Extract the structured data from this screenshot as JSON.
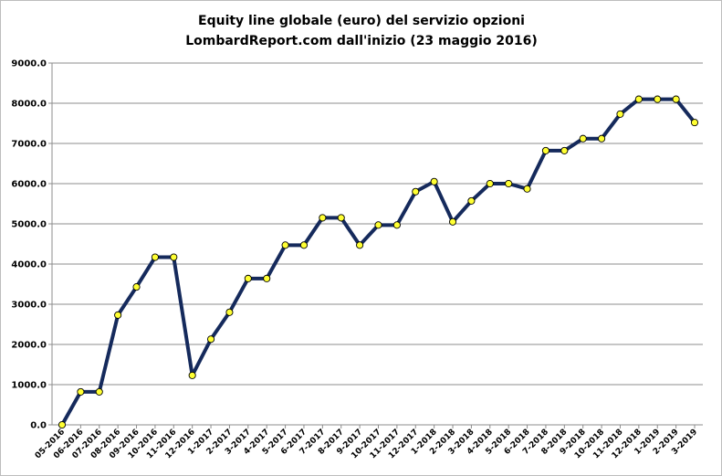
{
  "chart_data": {
    "type": "line",
    "title": "Equity line globale (euro) del servizio opzioni",
    "subtitle": "LombardReport.com dall'inizio (23 maggio 2016)",
    "xlabel": "",
    "ylabel": "",
    "ylim": [
      0,
      9000
    ],
    "yticks": [
      "0.0",
      "1000.0",
      "2000.0",
      "3000.0",
      "4000.0",
      "5000.0",
      "6000.0",
      "7000.0",
      "8000.0",
      "9000.0"
    ],
    "grid": true,
    "legend": "none",
    "line_color": "#152a5c",
    "marker_color": "#ffff33",
    "categories": [
      "05-2016",
      "06-2016",
      "07-2016",
      "08-2016",
      "09-2016",
      "10-2016",
      "11-2016",
      "12-2016",
      "1-2017",
      "2-2017",
      "3-2017",
      "4-2017",
      "5-2017",
      "6-2017",
      "7-2017",
      "8-2017",
      "9-2017",
      "10-2017",
      "11-2017",
      "12-2017",
      "1-2018",
      "2-2018",
      "3-2018",
      "4-2018",
      "5-2018",
      "6-2018",
      "7-2018",
      "8-2018",
      "9-2018",
      "10-2018",
      "11-2018",
      "12-2018",
      "1-2019",
      "2-2019",
      "3-2019"
    ],
    "values": [
      0,
      820,
      820,
      2730,
      3430,
      4170,
      4170,
      1230,
      2130,
      2800,
      3640,
      3640,
      4470,
      4470,
      5150,
      5150,
      4470,
      4970,
      4970,
      5800,
      6050,
      5050,
      5570,
      6000,
      6000,
      5870,
      6820,
      6820,
      7120,
      7120,
      7730,
      8100,
      8100,
      8100,
      7520
    ]
  }
}
